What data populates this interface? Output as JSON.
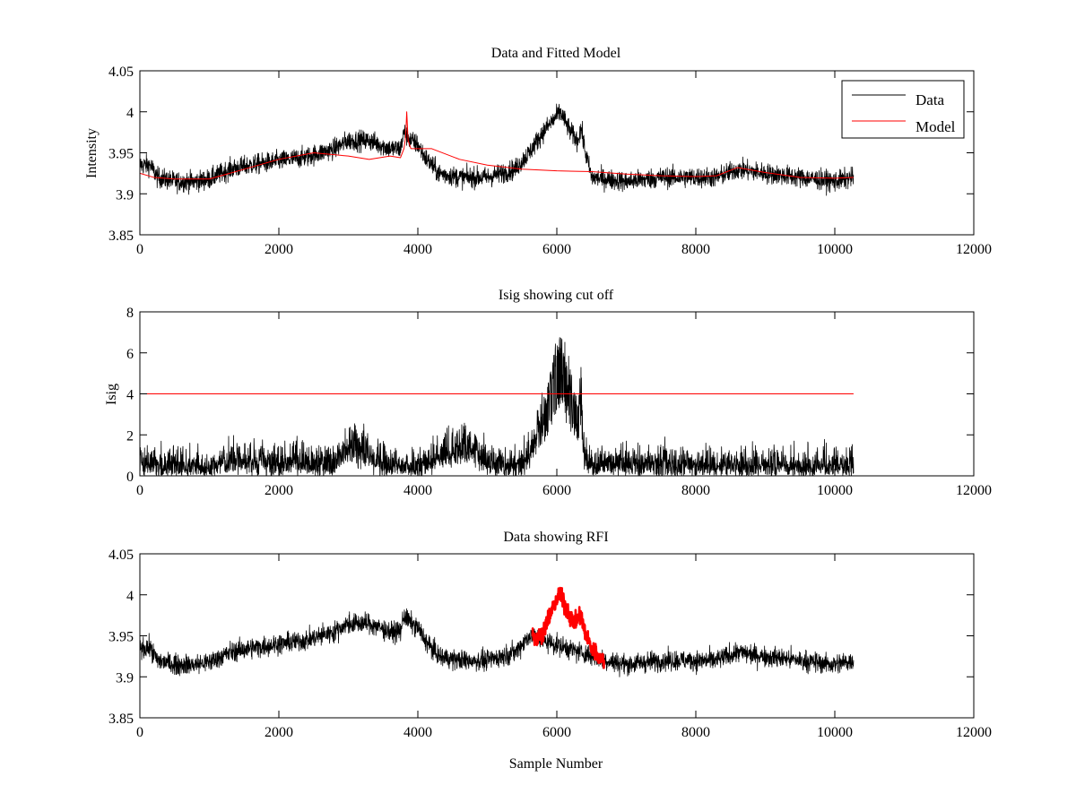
{
  "chart_data": [
    {
      "type": "line",
      "title": "Data and Fitted Model",
      "xlabel": "",
      "ylabel": "Intensity",
      "xlim": [
        0,
        12000
      ],
      "ylim": [
        3.85,
        4.05
      ],
      "xticks": [
        0,
        2000,
        4000,
        6000,
        8000,
        10000,
        12000
      ],
      "yticks": [
        3.85,
        3.9,
        3.95,
        4,
        4.05
      ],
      "xtick_labels": [
        "0",
        "2000",
        "4000",
        "6000",
        "8000",
        "10000",
        "12000"
      ],
      "ytick_labels": [
        "3.85",
        "3.9",
        "3.95",
        "4",
        "4.05"
      ],
      "legend": {
        "position": "top-right",
        "entries": [
          "Data",
          "Model"
        ]
      },
      "series": [
        {
          "name": "Data",
          "color": "#000000",
          "noise": 0.012,
          "x": [
            0,
            150,
            250,
            500,
            800,
            1000,
            1300,
            1600,
            2000,
            2400,
            2800,
            3000,
            3300,
            3600,
            3750,
            3800,
            3850,
            3900,
            4000,
            4100,
            4300,
            4600,
            5000,
            5200,
            5400,
            5600,
            5800,
            6000,
            6050,
            6200,
            6300,
            6350,
            6400,
            6500,
            7000,
            7500,
            8000,
            8300,
            8600,
            9000,
            9500,
            10000,
            10270
          ],
          "y": [
            3.935,
            3.935,
            3.92,
            3.915,
            3.915,
            3.918,
            3.93,
            3.935,
            3.94,
            3.945,
            3.955,
            3.965,
            3.965,
            3.955,
            3.955,
            3.975,
            3.97,
            3.965,
            3.96,
            3.945,
            3.925,
            3.92,
            3.92,
            3.925,
            3.93,
            3.95,
            3.975,
            3.995,
            4.0,
            3.975,
            3.965,
            3.98,
            3.955,
            3.92,
            3.915,
            3.92,
            3.92,
            3.92,
            3.93,
            3.925,
            3.92,
            3.915,
            3.92
          ]
        },
        {
          "name": "Model",
          "color": "#ff0000",
          "noise": 0,
          "x": [
            0,
            200,
            500,
            1000,
            1500,
            2000,
            2500,
            3000,
            3300,
            3600,
            3750,
            3800,
            3825,
            3840,
            3860,
            3900,
            4200,
            4600,
            5000,
            5500,
            6000,
            6500,
            7000,
            7500,
            8000,
            8300,
            8600,
            9000,
            9500,
            10000,
            10270
          ],
          "y": [
            3.925,
            3.92,
            3.918,
            3.918,
            3.93,
            3.942,
            3.95,
            3.946,
            3.942,
            3.946,
            3.944,
            3.955,
            3.97,
            4.0,
            3.965,
            3.955,
            3.955,
            3.942,
            3.935,
            3.93,
            3.928,
            3.927,
            3.924,
            3.922,
            3.921,
            3.922,
            3.932,
            3.926,
            3.92,
            3.919,
            3.92
          ]
        }
      ]
    },
    {
      "type": "line",
      "title": "Isig showing cut off",
      "xlabel": "",
      "ylabel": "Isig",
      "xlim": [
        0,
        12000
      ],
      "ylim": [
        0,
        8
      ],
      "xticks": [
        0,
        2000,
        4000,
        6000,
        8000,
        10000,
        12000
      ],
      "yticks": [
        0,
        2,
        4,
        6,
        8
      ],
      "xtick_labels": [
        "0",
        "2000",
        "4000",
        "6000",
        "8000",
        "10000",
        "12000"
      ],
      "ytick_labels": [
        "0",
        "2",
        "4",
        "6",
        "8"
      ],
      "series": [
        {
          "name": "Isig",
          "color": "#000000",
          "noise": 0.9,
          "x": [
            0,
            1000,
            1400,
            2000,
            2200,
            2700,
            3000,
            3200,
            3500,
            3800,
            4200,
            4500,
            4700,
            4900,
            5100,
            5300,
            5500,
            5700,
            5900,
            6000,
            6050,
            6200,
            6300,
            6350,
            6400,
            6500,
            7000,
            8000,
            9000,
            10000,
            10270
          ],
          "y": [
            0.7,
            0.6,
            1.0,
            0.7,
            1.1,
            0.6,
            1.9,
            1.6,
            0.7,
            0.5,
            1.0,
            1.6,
            1.9,
            1.3,
            0.8,
            0.6,
            0.7,
            2.2,
            4.5,
            6.0,
            6.3,
            4.5,
            3.0,
            4.5,
            1.0,
            0.7,
            0.7,
            0.7,
            0.7,
            0.7,
            0.6
          ]
        },
        {
          "name": "Cut off",
          "color": "#ff0000",
          "noise": 0,
          "x": [
            0,
            10270
          ],
          "y": [
            4,
            4
          ]
        }
      ]
    },
    {
      "type": "line",
      "title": "Data showing RFI",
      "xlabel": "Sample Number",
      "ylabel": "",
      "xlim": [
        0,
        12000
      ],
      "ylim": [
        3.85,
        4.05
      ],
      "xticks": [
        0,
        2000,
        4000,
        6000,
        8000,
        10000,
        12000
      ],
      "yticks": [
        3.85,
        3.9,
        3.95,
        4,
        4.05
      ],
      "xtick_labels": [
        "0",
        "2000",
        "4000",
        "6000",
        "8000",
        "10000",
        "12000"
      ],
      "ytick_labels": [
        "3.85",
        "3.9",
        "3.95",
        "4",
        "4.05"
      ],
      "series": [
        {
          "name": "Data",
          "color": "#000000",
          "noise": 0.012,
          "x": [
            0,
            150,
            250,
            500,
            800,
            1000,
            1300,
            1600,
            2000,
            2400,
            2800,
            3000,
            3300,
            3600,
            3750,
            3800,
            3850,
            3900,
            4000,
            4100,
            4300,
            4600,
            5000,
            5200,
            5400,
            5600,
            6700,
            7000,
            7500,
            8000,
            8300,
            8600,
            9000,
            9500,
            10000,
            10270
          ],
          "y": [
            3.935,
            3.935,
            3.92,
            3.915,
            3.915,
            3.918,
            3.93,
            3.935,
            3.94,
            3.945,
            3.955,
            3.965,
            3.965,
            3.955,
            3.955,
            3.975,
            3.97,
            3.965,
            3.96,
            3.945,
            3.925,
            3.92,
            3.92,
            3.925,
            3.93,
            3.95,
            3.92,
            3.915,
            3.92,
            3.92,
            3.92,
            3.93,
            3.925,
            3.92,
            3.915,
            3.92
          ]
        },
        {
          "name": "RFI",
          "color": "#ff0000",
          "noise": 0.01,
          "x": [
            5650,
            5700,
            5800,
            5900,
            6000,
            6050,
            6150,
            6250,
            6300,
            6350,
            6400,
            6500,
            6600,
            6680
          ],
          "y": [
            3.955,
            3.945,
            3.955,
            3.975,
            3.995,
            4.0,
            3.98,
            3.965,
            3.97,
            3.975,
            3.955,
            3.935,
            3.925,
            3.92
          ]
        }
      ]
    }
  ]
}
